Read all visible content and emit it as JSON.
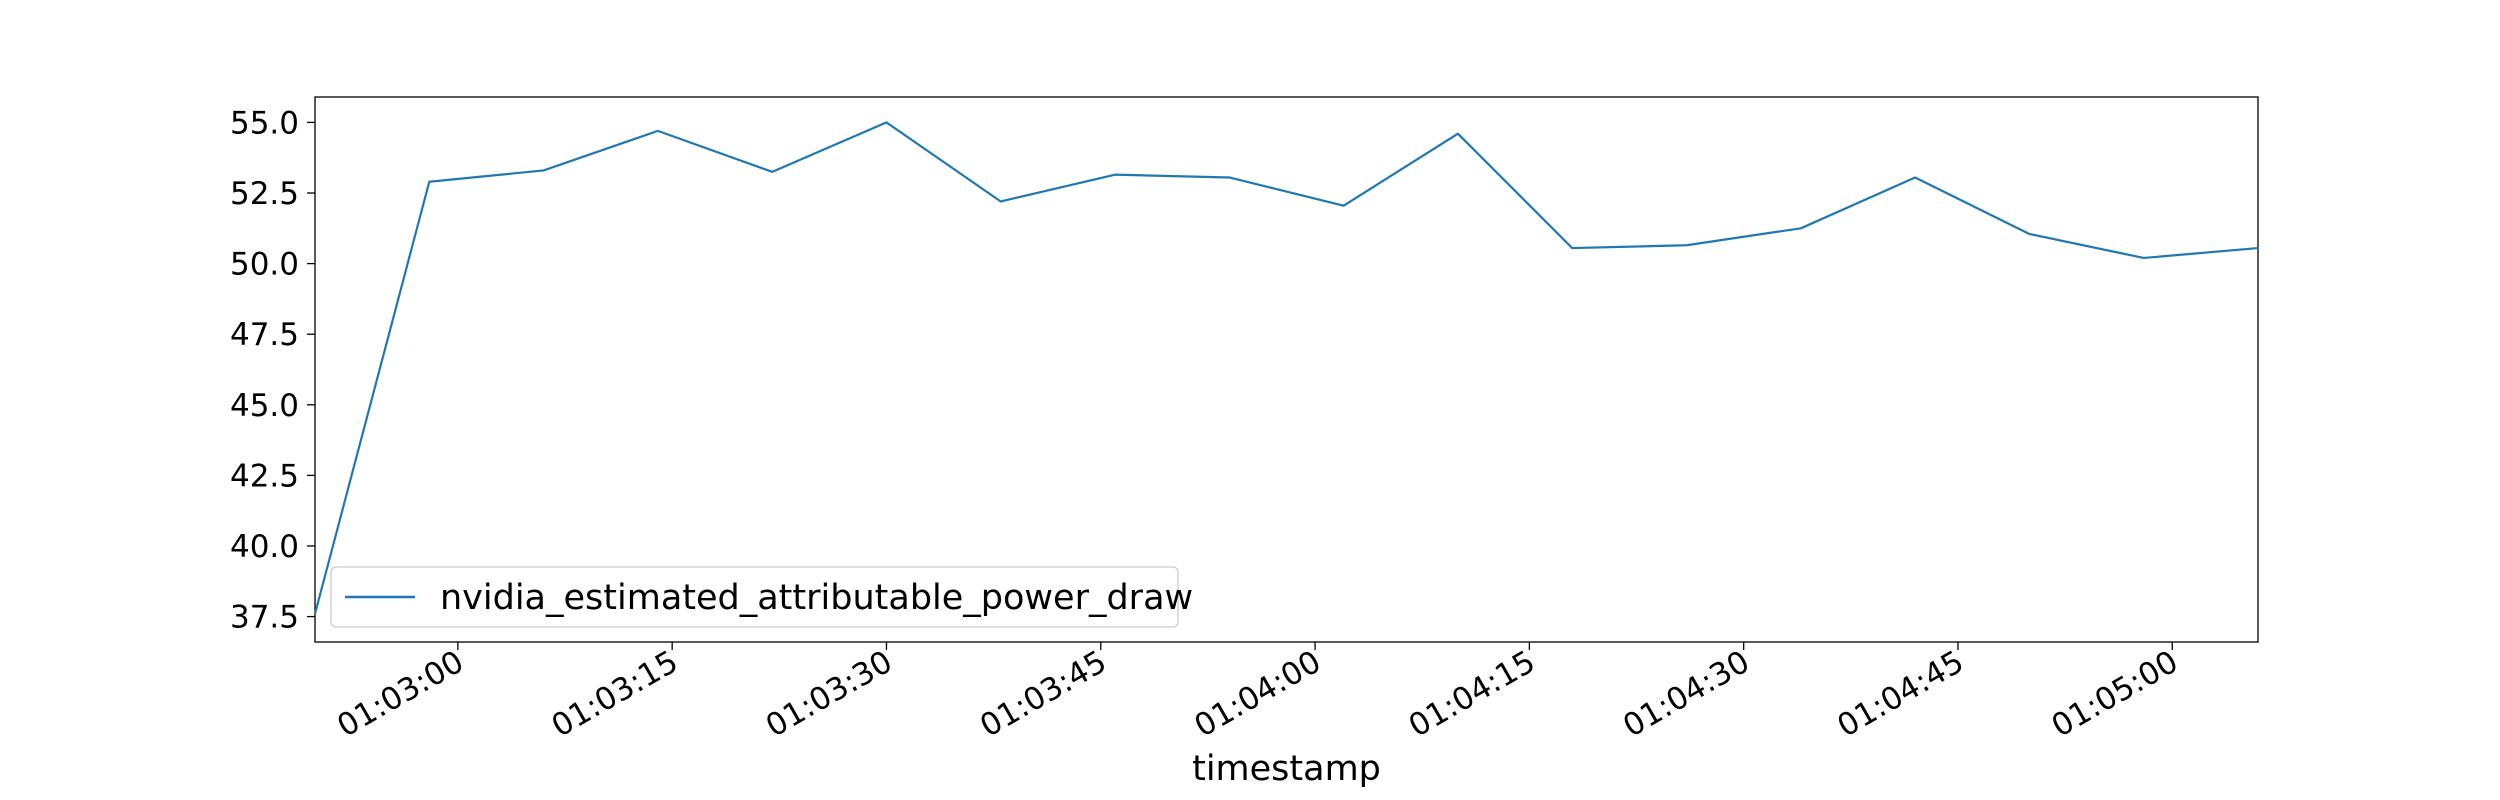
{
  "chart_data": {
    "type": "line",
    "title": "",
    "xlabel": "timestamp",
    "ylabel": "",
    "x": [
      "01:02:50",
      "01:02:58",
      "01:03:06",
      "01:03:14",
      "01:03:22",
      "01:03:30",
      "01:03:38",
      "01:03:46",
      "01:03:54",
      "01:04:02",
      "01:04:10",
      "01:04:18",
      "01:04:26",
      "01:04:34",
      "01:04:42",
      "01:04:50",
      "01:04:58",
      "01:05:06"
    ],
    "series": [
      {
        "name": "nvidia_estimated_attributable_power_draw",
        "color": "#1f77b4",
        "values": [
          37.6,
          52.9,
          53.3,
          54.7,
          53.25,
          55.0,
          52.2,
          53.15,
          53.05,
          52.05,
          54.6,
          50.55,
          50.65,
          51.25,
          53.05,
          51.05,
          50.2,
          50.55
        ]
      }
    ],
    "xlim": [
      "01:02:50",
      "01:05:06"
    ],
    "ylim": [
      36.6,
      55.9
    ],
    "x_ticks": [
      "01:03:00",
      "01:03:15",
      "01:03:30",
      "01:03:45",
      "01:04:00",
      "01:04:15",
      "01:04:30",
      "01:04:45",
      "01:05:00"
    ],
    "y_ticks": [
      "37.5",
      "40.0",
      "42.5",
      "45.0",
      "47.5",
      "50.0",
      "52.5",
      "55.0"
    ],
    "grid": false,
    "legend_position": "lower-left"
  }
}
